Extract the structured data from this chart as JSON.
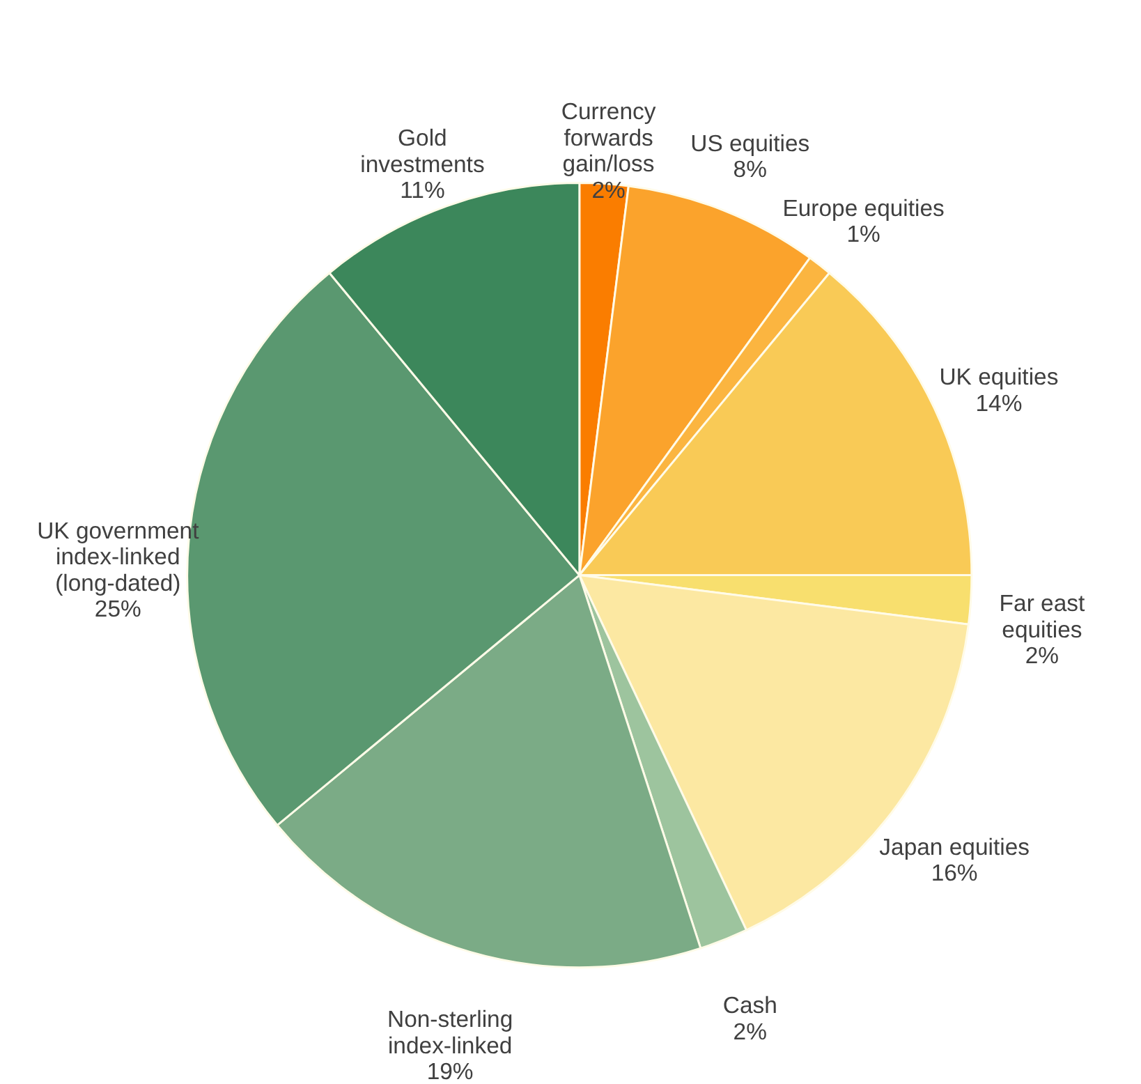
{
  "chart_data": {
    "type": "pie",
    "categories": [
      "Currency forwards gain/loss",
      "US equities",
      "Europe equities",
      "UK equities",
      "Far east equities",
      "Japan equities",
      "Cash",
      "Non-sterling index-linked",
      "UK government index-linked (long-dated)",
      "Gold investments"
    ],
    "values": [
      2,
      8,
      1,
      14,
      2,
      16,
      2,
      19,
      25,
      11
    ],
    "value_labels": [
      "2%",
      "8%",
      "1%",
      "14%",
      "2%",
      "16%",
      "2%",
      "19%",
      "25%",
      "11%"
    ],
    "colors": [
      "#fa7d00",
      "#fba32c",
      "#fbb540",
      "#f9ca56",
      "#f8df6e",
      "#fce8a2",
      "#9dc49e",
      "#7bab86",
      "#5a9870",
      "#3c875b"
    ]
  }
}
